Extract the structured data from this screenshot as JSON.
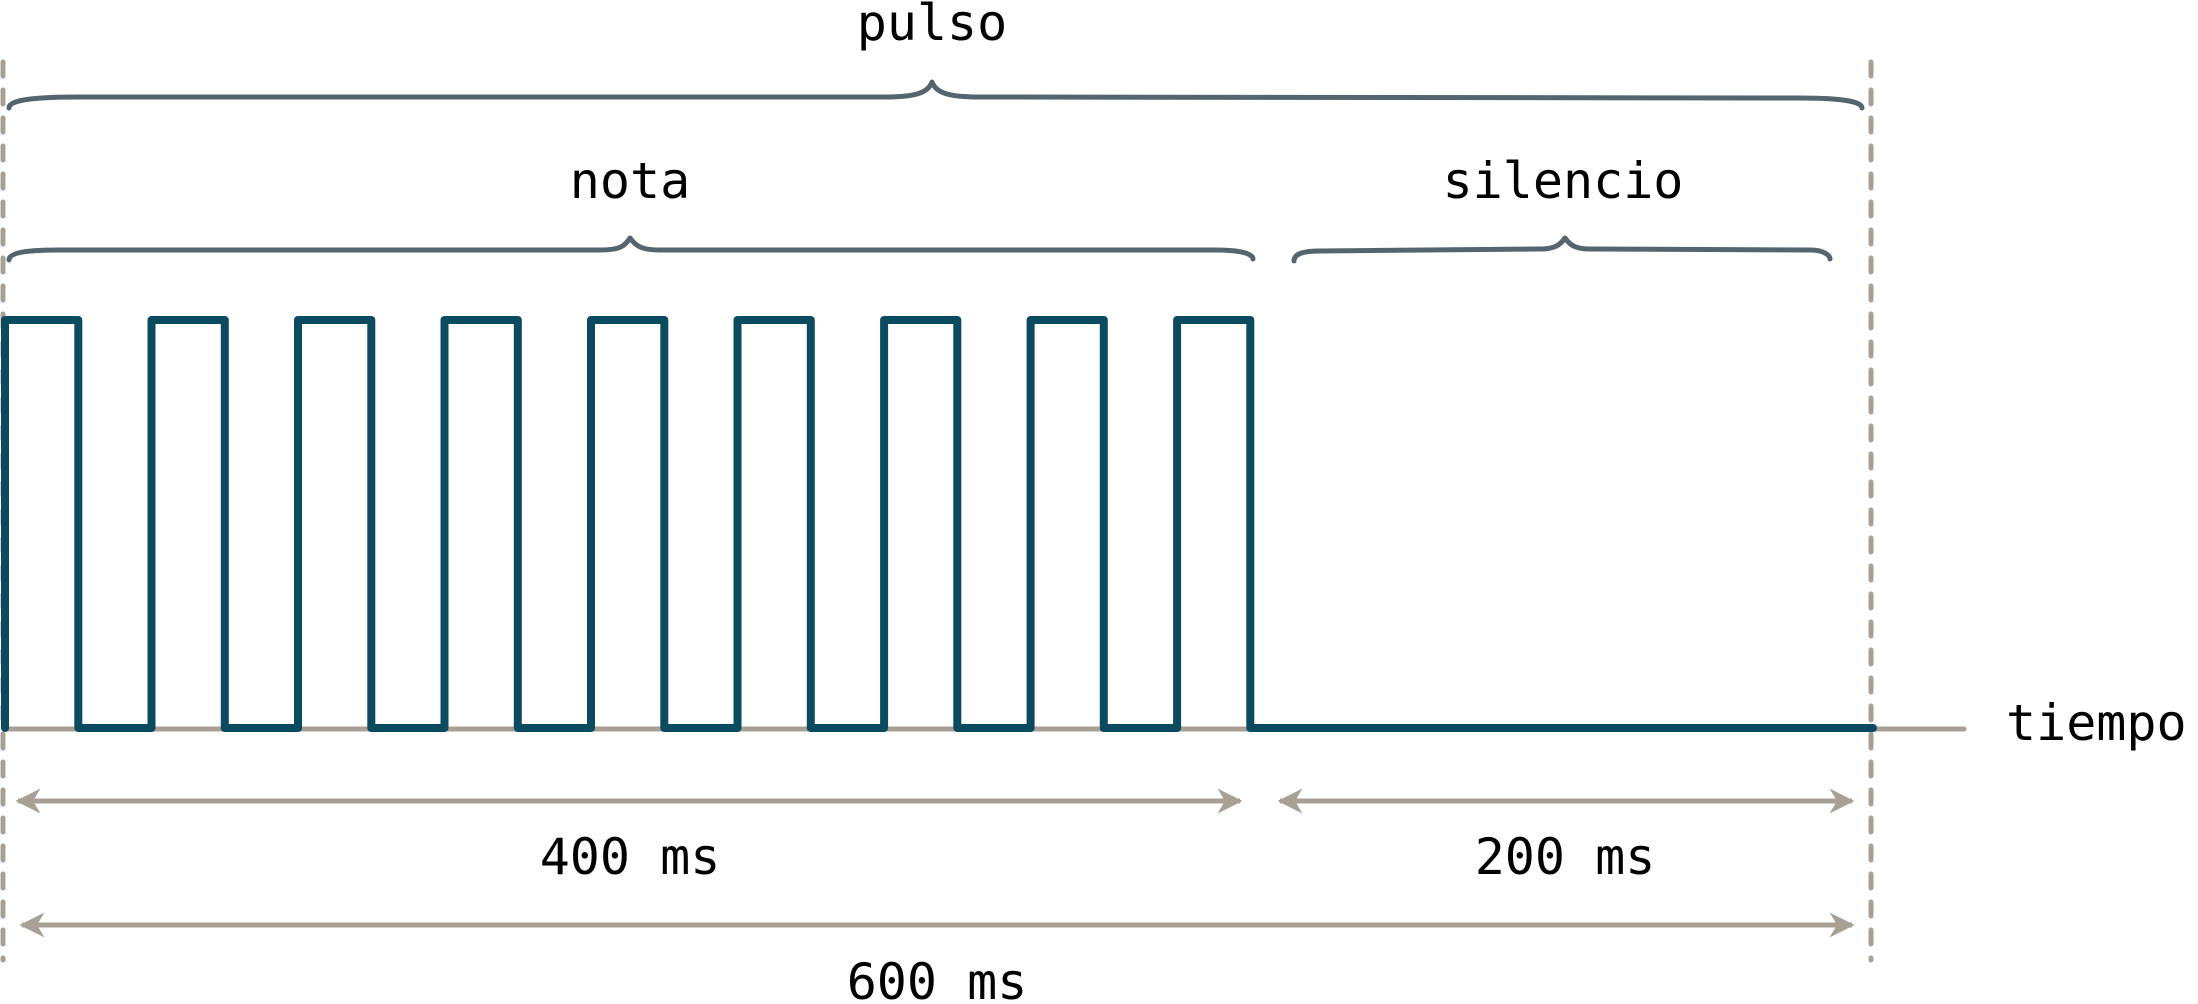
{
  "labels": {
    "pulse": "pulso",
    "note": "nota",
    "silence": "silencio",
    "time_axis": "tiempo",
    "note_duration": "400 ms",
    "silence_duration": "200 ms",
    "pulse_duration": "600 ms"
  },
  "signal": {
    "cycles": 9,
    "note_ms": 400,
    "silence_ms": 200,
    "total_ms": 600
  },
  "colors": {
    "signal": "#0b4a5f",
    "brace": "#55656f",
    "guide": "#a89f95",
    "text": "#000000"
  }
}
